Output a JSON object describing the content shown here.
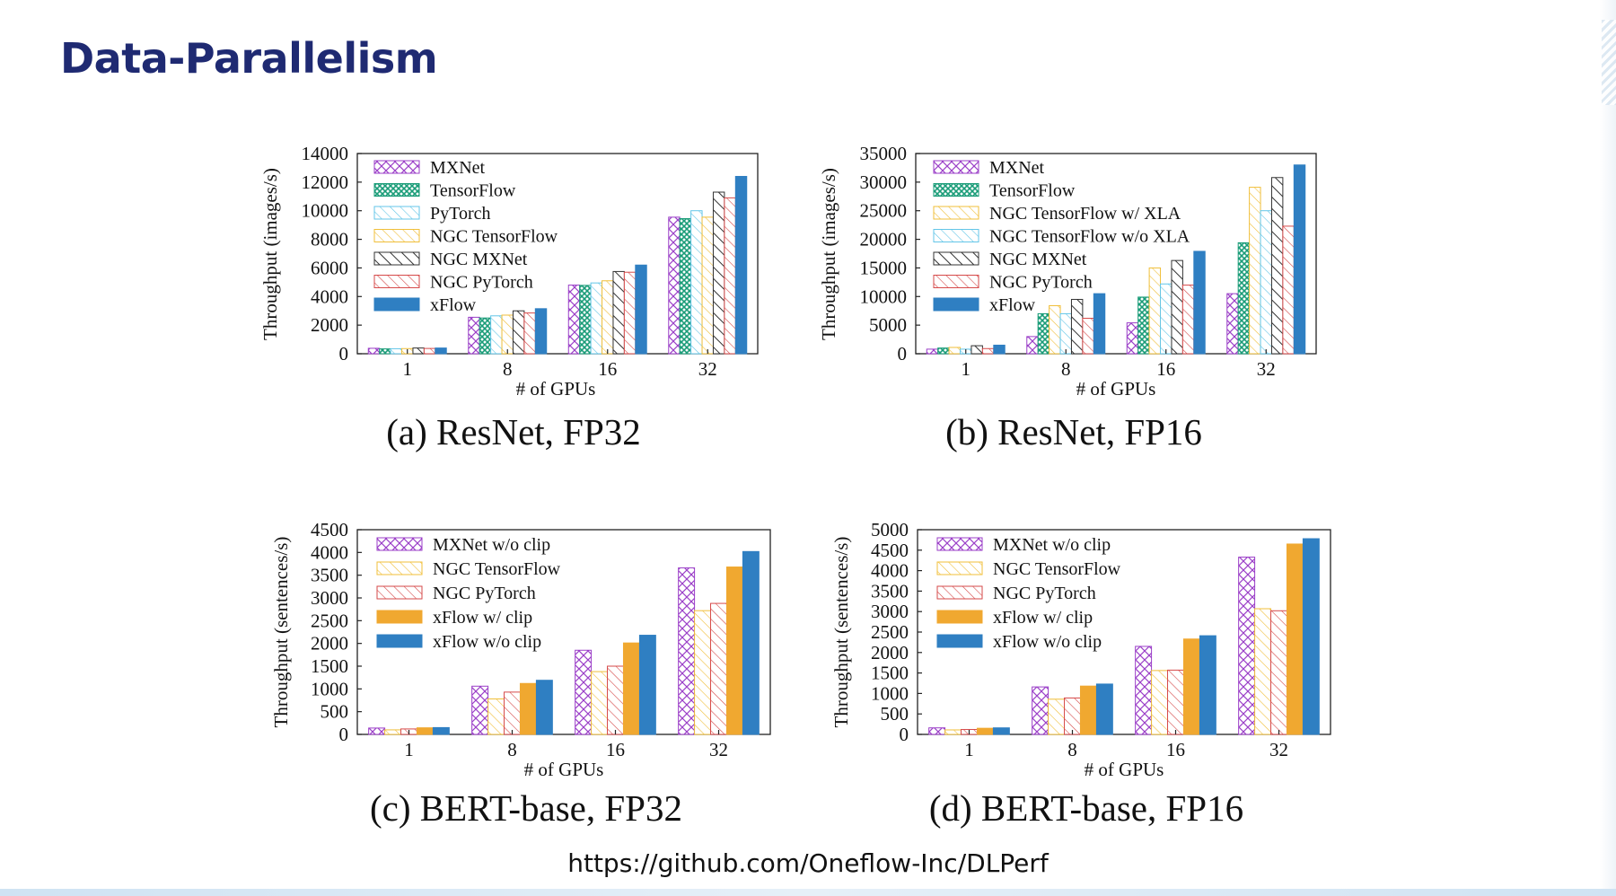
{
  "slide": {
    "title": "Data-Parallelism",
    "footer_url": "https://github.com/Oneflow-Inc/DLPerf"
  },
  "styles": {
    "MXNet": {
      "color": "#9b3fc8",
      "pattern": "cross"
    },
    "MXNet w/o clip": {
      "color": "#9b3fc8",
      "pattern": "cross"
    },
    "TensorFlow": {
      "color": "#1a9c78",
      "pattern": "grid"
    },
    "PyTorch": {
      "color": "#63c6e8",
      "pattern": "hatch-light"
    },
    "NGC TensorFlow": {
      "color": "#f0bf3a",
      "pattern": "hatch-light"
    },
    "NGC TensorFlow w/ XLA": {
      "color": "#f0bf3a",
      "pattern": "hatch-light"
    },
    "NGC TensorFlow w/o XLA": {
      "color": "#63c6e8",
      "pattern": "hatch-light"
    },
    "NGC MXNet": {
      "color": "#333333",
      "pattern": "hatch-bold"
    },
    "NGC PyTorch": {
      "color": "#d64a4a",
      "pattern": "hatch-light"
    },
    "xFlow": {
      "color": "#2f7fc2",
      "pattern": "solid"
    },
    "xFlow w/ clip": {
      "color": "#f0a830",
      "pattern": "solid"
    },
    "xFlow w/o clip": {
      "color": "#2f7fc2",
      "pattern": "solid"
    }
  },
  "chart_data": [
    {
      "type": "bar",
      "caption": "(a) ResNet, FP32",
      "xlabel": "# of GPUs",
      "ylabel": "Throughput (images/s)",
      "categories": [
        "1",
        "8",
        "16",
        "32"
      ],
      "ylim": [
        0,
        14000
      ],
      "yticks": [
        0,
        2000,
        4000,
        6000,
        8000,
        10000,
        12000,
        14000
      ],
      "legend_position": "top-left",
      "series": [
        {
          "name": "MXNet",
          "values": [
            380,
            2550,
            4800,
            9550
          ]
        },
        {
          "name": "TensorFlow",
          "values": [
            340,
            2500,
            4780,
            9450
          ]
        },
        {
          "name": "PyTorch",
          "values": [
            350,
            2650,
            4950,
            10000
          ]
        },
        {
          "name": "NGC TensorFlow",
          "values": [
            360,
            2700,
            5100,
            9550
          ]
        },
        {
          "name": "NGC MXNet",
          "values": [
            400,
            3000,
            5750,
            11300
          ]
        },
        {
          "name": "NGC PyTorch",
          "values": [
            370,
            2850,
            5700,
            10900
          ]
        },
        {
          "name": "xFlow",
          "values": [
            400,
            3150,
            6200,
            12400
          ]
        }
      ]
    },
    {
      "type": "bar",
      "caption": "(b) ResNet, FP16",
      "xlabel": "# of GPUs",
      "ylabel": "Throughput (images/s)",
      "categories": [
        "1",
        "8",
        "16",
        "32"
      ],
      "ylim": [
        0,
        35000
      ],
      "yticks": [
        0,
        5000,
        10000,
        15000,
        20000,
        25000,
        30000,
        35000
      ],
      "legend_position": "top-left",
      "series": [
        {
          "name": "MXNet",
          "values": [
            800,
            3000,
            5400,
            10500
          ]
        },
        {
          "name": "TensorFlow",
          "values": [
            1000,
            7000,
            9900,
            19400
          ]
        },
        {
          "name": "NGC TensorFlow w/ XLA",
          "values": [
            1100,
            8400,
            15000,
            29100
          ]
        },
        {
          "name": "NGC TensorFlow w/o XLA",
          "values": [
            800,
            7000,
            12200,
            25000
          ]
        },
        {
          "name": "NGC MXNet",
          "values": [
            1400,
            9500,
            16300,
            30800
          ]
        },
        {
          "name": "NGC PyTorch",
          "values": [
            900,
            6200,
            12000,
            22300
          ]
        },
        {
          "name": "xFlow",
          "values": [
            1500,
            10500,
            17900,
            33000
          ]
        }
      ]
    },
    {
      "type": "bar",
      "caption": "(c) BERT-base, FP32",
      "xlabel": "# of GPUs",
      "ylabel": "Throughput (sentences/s)",
      "categories": [
        "1",
        "8",
        "16",
        "32"
      ],
      "ylim": [
        0,
        4500
      ],
      "yticks": [
        0,
        500,
        1000,
        1500,
        2000,
        2500,
        3000,
        3500,
        4000,
        4500
      ],
      "legend_position": "top-left",
      "series": [
        {
          "name": "MXNet w/o clip",
          "values": [
            140,
            1060,
            1850,
            3660
          ]
        },
        {
          "name": "NGC TensorFlow",
          "values": [
            100,
            780,
            1380,
            2720
          ]
        },
        {
          "name": "NGC PyTorch",
          "values": [
            120,
            930,
            1500,
            2880
          ]
        },
        {
          "name": "xFlow w/ clip",
          "values": [
            145,
            1120,
            2010,
            3680
          ]
        },
        {
          "name": "xFlow w/o clip",
          "values": [
            150,
            1190,
            2180,
            4020
          ]
        }
      ]
    },
    {
      "type": "bar",
      "caption": "(d) BERT-base, FP16",
      "xlabel": "# of GPUs",
      "ylabel": "Throughput (sentences/s)",
      "categories": [
        "1",
        "8",
        "16",
        "32"
      ],
      "ylim": [
        0,
        5000
      ],
      "yticks": [
        0,
        500,
        1000,
        1500,
        2000,
        2500,
        3000,
        3500,
        4000,
        4500,
        5000
      ],
      "legend_position": "top-left",
      "series": [
        {
          "name": "MXNet w/o clip",
          "values": [
            160,
            1160,
            2150,
            4330
          ]
        },
        {
          "name": "NGC TensorFlow",
          "values": [
            110,
            860,
            1560,
            3070
          ]
        },
        {
          "name": "NGC PyTorch",
          "values": [
            120,
            890,
            1570,
            3020
          ]
        },
        {
          "name": "xFlow w/ clip",
          "values": [
            150,
            1180,
            2330,
            4650
          ]
        },
        {
          "name": "xFlow w/o clip",
          "values": [
            160,
            1230,
            2410,
            4780
          ]
        }
      ]
    }
  ]
}
